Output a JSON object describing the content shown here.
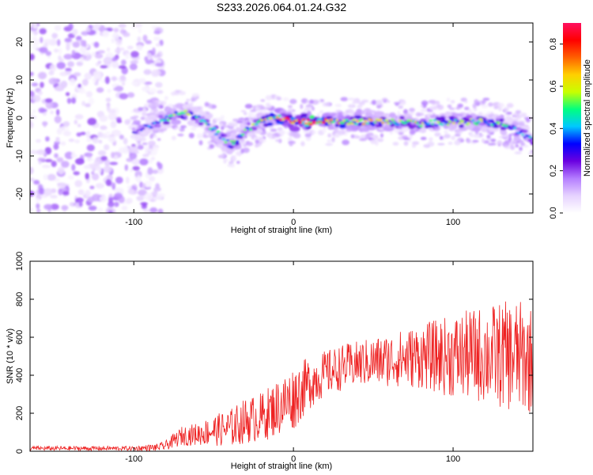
{
  "page": {
    "title": "S233.2026.064.01.24.G32"
  },
  "chart_data": [
    {
      "type": "heatmap",
      "title": "S233.2026.064.01.24.G32",
      "xlabel": "Height of straight line (km)",
      "ylabel": "Frequency (Hz)",
      "xlim": [
        -165,
        150
      ],
      "ylim": [
        -25,
        25
      ],
      "x_ticks": [
        -100,
        0,
        100
      ],
      "y_ticks": [
        -20,
        -10,
        0,
        10,
        20
      ],
      "colorbar": {
        "label": "Normalized spectral amplitude",
        "range": [
          0,
          0.9
        ],
        "ticks": [
          "0.0",
          "0.2",
          "0.4",
          "0.6",
          "0.8"
        ],
        "colors": [
          "#ffffff",
          "#e6d2ff",
          "#b47dff",
          "#6a00e0",
          "#0000ff",
          "#00c8ff",
          "#00ff80",
          "#c8ff00",
          "#ffd000",
          "#ff6000",
          "#ff0000",
          "#ff1060"
        ]
      },
      "noise_region": {
        "x_range": [
          -165,
          -82
        ],
        "y_range": [
          -25,
          25
        ]
      },
      "signal_ridge": {
        "x": [
          -100,
          -85,
          -70,
          -60,
          -50,
          -40,
          -35,
          -30,
          -20,
          -10,
          0,
          10,
          20,
          40,
          60,
          80,
          100,
          120,
          135,
          150
        ],
        "freq": [
          -4,
          -1,
          1.5,
          0,
          -3,
          -7,
          -6,
          -3,
          -1,
          0,
          -1,
          -1,
          -1,
          -1,
          -1,
          -1.5,
          -1,
          -1,
          -2,
          -6
        ],
        "peak_amplitude": [
          0.2,
          0.35,
          0.45,
          0.4,
          0.35,
          0.4,
          0.45,
          0.4,
          0.5,
          0.55,
          0.7,
          0.9,
          0.6,
          0.5,
          0.5,
          0.5,
          0.45,
          0.45,
          0.4,
          0.35
        ]
      }
    },
    {
      "type": "line",
      "xlabel": "Height of straight line (km)",
      "ylabel": "SNR (10 * v/v)",
      "xlim": [
        -165,
        150
      ],
      "ylim": [
        0,
        1000
      ],
      "x_ticks": [
        -100,
        0,
        100
      ],
      "y_ticks": [
        0,
        200,
        400,
        600,
        800,
        1000
      ],
      "series": [
        {
          "name": "SNR",
          "color": "#ee2222",
          "envelope_x": [
            -165,
            -100,
            -85,
            -80,
            -70,
            -60,
            -50,
            -40,
            -30,
            -20,
            -10,
            0,
            10,
            20,
            30,
            40,
            60,
            80,
            100,
            120,
            140,
            150
          ],
          "envelope_mean": [
            15,
            15,
            20,
            30,
            80,
            90,
            110,
            120,
            160,
            180,
            230,
            280,
            360,
            410,
            440,
            460,
            480,
            500,
            500,
            510,
            500,
            480
          ],
          "envelope_spread": [
            12,
            12,
            20,
            25,
            50,
            60,
            80,
            100,
            120,
            130,
            150,
            170,
            140,
            120,
            120,
            120,
            140,
            170,
            220,
            260,
            300,
            280
          ]
        }
      ]
    }
  ]
}
